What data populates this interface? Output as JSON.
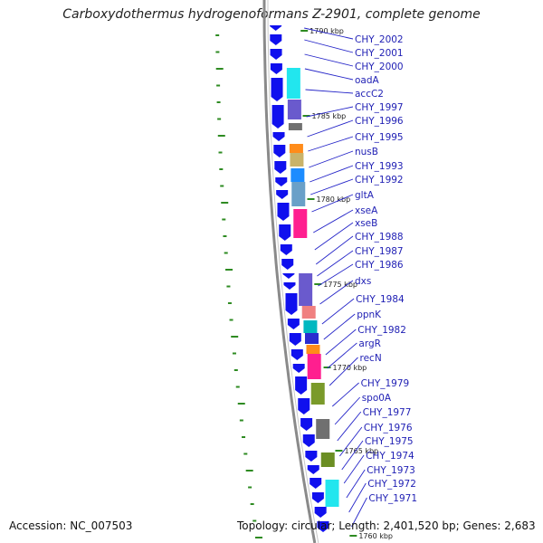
{
  "title": "Carboxydothermus hydrogenoformans Z-2901, complete genome",
  "footer": {
    "accession": "Accession: NC_007503",
    "summary": "Topology: circular; Length: 2,401,520 bp; Genes: 2,683"
  },
  "colors": {
    "forward_strand": "#1010ee",
    "backbone": "#8a8a8a",
    "gc_marks": "#2e8b22",
    "label_text": "#1f1fb4",
    "leader_line": "#2424c8"
  },
  "kbp_markers": [
    "1790 kbp",
    "1785 kbp",
    "1780 kbp",
    "1775 kbp",
    "1770 kbp",
    "1765 kbp",
    "1760 kbp"
  ],
  "genes": [
    {
      "name": "CHY_2002"
    },
    {
      "name": "CHY_2001"
    },
    {
      "name": "CHY_2000"
    },
    {
      "name": "oadA"
    },
    {
      "name": "accC2"
    },
    {
      "name": "CHY_1997"
    },
    {
      "name": "CHY_1996"
    },
    {
      "name": "CHY_1995"
    },
    {
      "name": "nusB"
    },
    {
      "name": "CHY_1993"
    },
    {
      "name": "CHY_1992"
    },
    {
      "name": "gltA"
    },
    {
      "name": "xseA"
    },
    {
      "name": "xseB"
    },
    {
      "name": "CHY_1988"
    },
    {
      "name": "CHY_1987"
    },
    {
      "name": "CHY_1986"
    },
    {
      "name": "dxs"
    },
    {
      "name": "CHY_1984"
    },
    {
      "name": "ppnK"
    },
    {
      "name": "CHY_1982"
    },
    {
      "name": "argR"
    },
    {
      "name": "recN"
    },
    {
      "name": "CHY_1979"
    },
    {
      "name": "spo0A"
    },
    {
      "name": "CHY_1977"
    },
    {
      "name": "CHY_1976"
    },
    {
      "name": "CHY_1975"
    },
    {
      "name": "CHY_1974"
    },
    {
      "name": "CHY_1973"
    },
    {
      "name": "CHY_1972"
    },
    {
      "name": "CHY_1971"
    }
  ],
  "cog_blocks": [
    {
      "color": "#22e6ee"
    },
    {
      "color": "#6a5acd"
    },
    {
      "color": "#707070"
    },
    {
      "color": "#ff8c1a"
    },
    {
      "color": "#c9b36a"
    },
    {
      "color": "#1c8cff"
    },
    {
      "color": "#6aa0c8"
    },
    {
      "color": "#ff1f8f"
    },
    {
      "color": "#6a5acd"
    },
    {
      "color": "#f08080"
    },
    {
      "color": "#00b8c0"
    },
    {
      "color": "#2b2bd0"
    },
    {
      "color": "#ff8c1a"
    },
    {
      "color": "#ff1f8f"
    },
    {
      "color": "#7a9a2a"
    },
    {
      "color": "#707070"
    },
    {
      "color": "#6b8e23"
    },
    {
      "color": "#22e6ee"
    }
  ]
}
